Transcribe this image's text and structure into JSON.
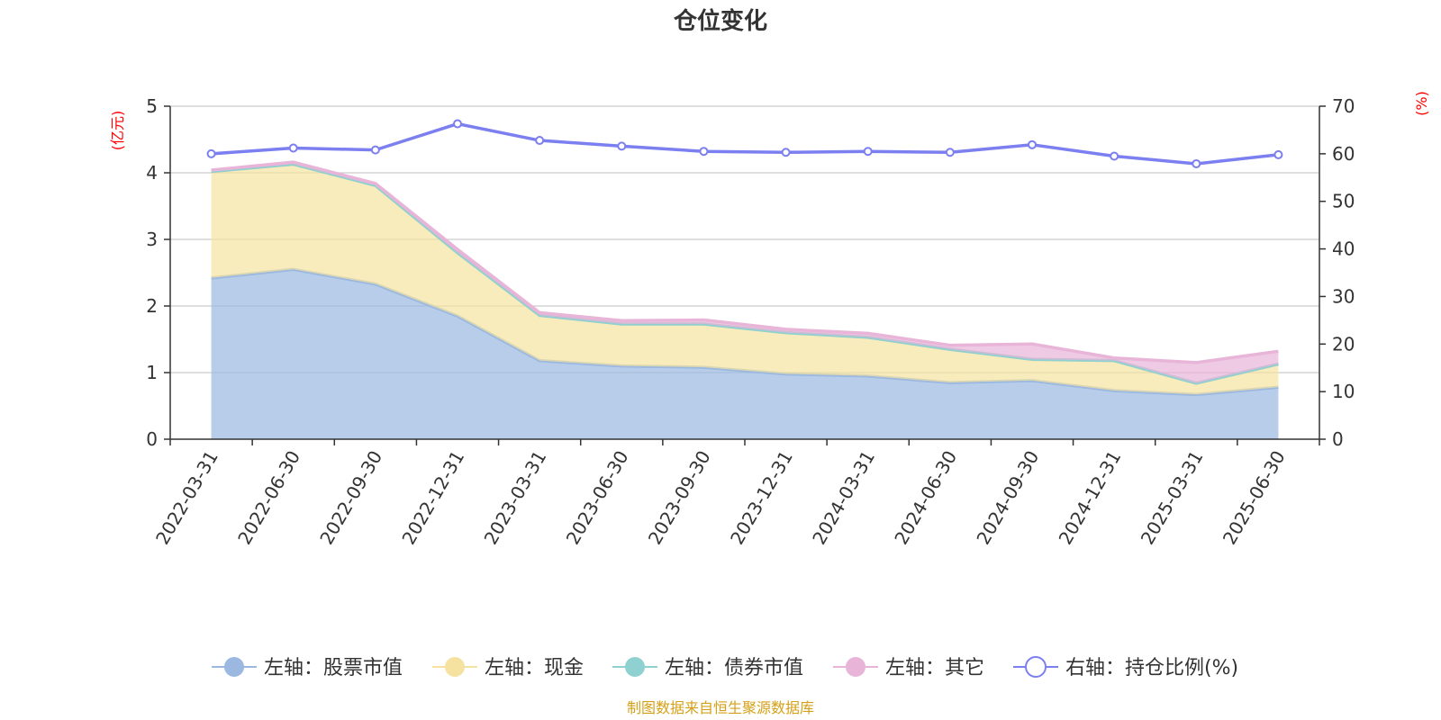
{
  "chart_data": {
    "type": "area",
    "title": "仓位变化",
    "categories": [
      "2022-03-31",
      "2022-06-30",
      "2022-09-30",
      "2022-12-31",
      "2023-03-31",
      "2023-06-30",
      "2023-09-30",
      "2023-12-31",
      "2024-03-31",
      "2024-06-30",
      "2024-09-30",
      "2024-12-31",
      "2025-03-31",
      "2025-06-30"
    ],
    "left_axis": {
      "unit": "(亿元)",
      "ylim": [
        0,
        5
      ],
      "ticks": [
        "0",
        "1",
        "2",
        "3",
        "4",
        "5"
      ]
    },
    "right_axis": {
      "unit": "(%)",
      "ylim": [
        0,
        70
      ],
      "ticks": [
        "0",
        "10",
        "20",
        "30",
        "40",
        "50",
        "60",
        "70"
      ]
    },
    "grid": true,
    "series": [
      {
        "name": "左轴：股票市值",
        "type": "stacked-area",
        "axis": "left",
        "color": "#9ab8e0",
        "values": [
          2.42,
          2.55,
          2.33,
          1.85,
          1.18,
          1.1,
          1.08,
          0.98,
          0.95,
          0.85,
          0.88,
          0.73,
          0.67,
          0.78
        ]
      },
      {
        "name": "左轴：现金",
        "type": "stacked-area",
        "axis": "left",
        "color": "#f5e2a0",
        "values": [
          1.6,
          1.58,
          1.48,
          0.95,
          0.68,
          0.63,
          0.65,
          0.62,
          0.58,
          0.5,
          0.32,
          0.45,
          0.17,
          0.35
        ]
      },
      {
        "name": "左轴：债券市值",
        "type": "stacked-area",
        "axis": "left",
        "color": "#8fd0d0",
        "values": [
          0,
          0,
          0,
          0,
          0,
          0,
          0,
          0,
          0,
          0,
          0,
          0,
          0,
          0
        ]
      },
      {
        "name": "左轴：其它",
        "type": "stacked-area",
        "axis": "left",
        "color": "#e8b4d8",
        "values": [
          0.02,
          0.03,
          0.03,
          0.05,
          0.04,
          0.05,
          0.06,
          0.05,
          0.06,
          0.06,
          0.23,
          0.04,
          0.31,
          0.19
        ]
      },
      {
        "name": "右轴：持仓比例(%)",
        "type": "line",
        "axis": "right",
        "color": "#7b7ff0",
        "values": [
          60.0,
          61.2,
          60.8,
          66.3,
          62.8,
          61.6,
          60.5,
          60.3,
          60.5,
          60.3,
          61.9,
          59.5,
          57.9,
          59.8
        ]
      }
    ],
    "legend_position": "bottom"
  },
  "source_note": "制图数据来自恒生聚源数据库"
}
